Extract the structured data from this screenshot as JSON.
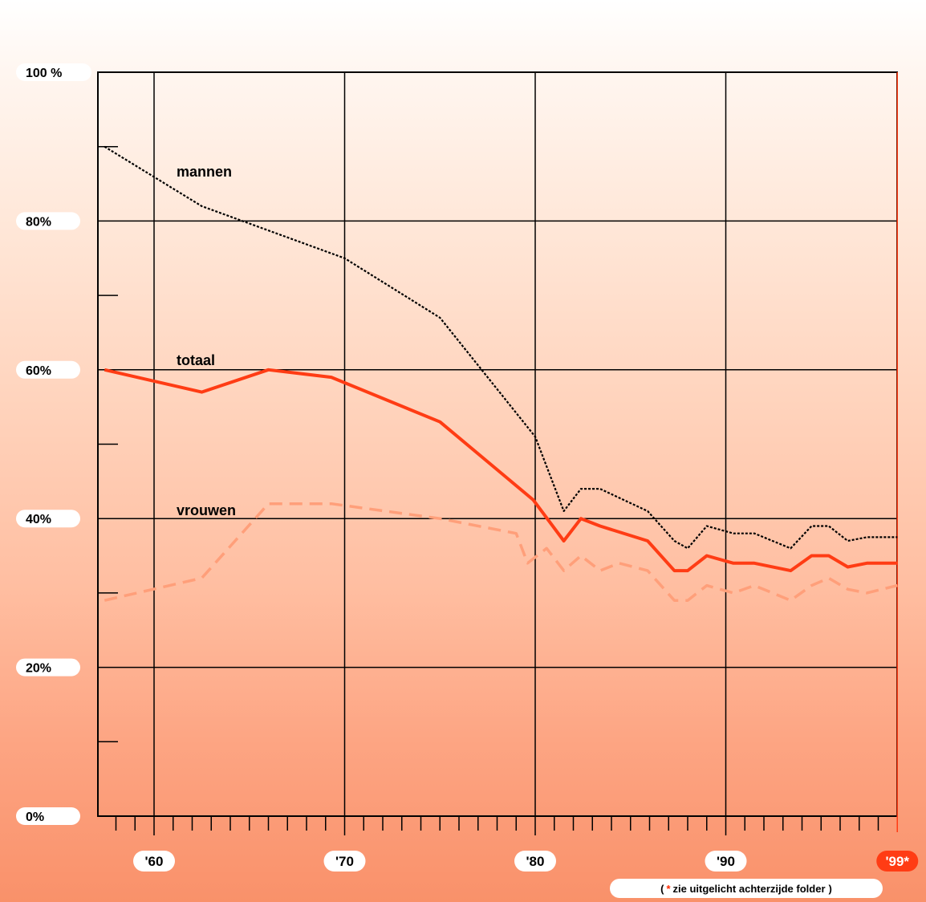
{
  "chart_data": {
    "type": "line",
    "y_tick_labels": [
      "0%",
      "20%",
      "40%",
      "60%",
      "80%",
      "100 %"
    ],
    "y_tick_values": [
      0,
      20,
      40,
      60,
      80,
      100
    ],
    "x_tick_labels": [
      "'60",
      "'70",
      "'80",
      "'90",
      "'99*"
    ],
    "x_tick_values": [
      1960,
      1970,
      1980,
      1990,
      1999
    ],
    "highlight_year": 1999,
    "xlim": [
      1957,
      2000
    ],
    "ylim": [
      0,
      100
    ],
    "grid": true,
    "series": [
      {
        "name": "mannen",
        "color": "#000000",
        "style": "dotted",
        "points": [
          [
            1957.4,
            90
          ],
          [
            1962.5,
            82
          ],
          [
            1970,
            75
          ],
          [
            1975,
            67
          ],
          [
            1980,
            51
          ],
          [
            1981.5,
            41
          ],
          [
            1982.4,
            44
          ],
          [
            1983.4,
            44
          ],
          [
            1985.9,
            41
          ],
          [
            1987.3,
            37
          ],
          [
            1988,
            36
          ],
          [
            1989,
            39
          ],
          [
            1990.4,
            38
          ],
          [
            1991.5,
            38
          ],
          [
            1993.4,
            36
          ],
          [
            1994.5,
            39
          ],
          [
            1995.4,
            39
          ],
          [
            1996.4,
            37
          ],
          [
            1997.4,
            37.5
          ],
          [
            1999,
            37.5
          ]
        ]
      },
      {
        "name": "totaal",
        "color": "#ff3c14",
        "style": "solid",
        "points": [
          [
            1957.4,
            60
          ],
          [
            1962.5,
            57
          ],
          [
            1966,
            60
          ],
          [
            1969.3,
            59
          ],
          [
            1975,
            53
          ],
          [
            1979.9,
            42.5
          ],
          [
            1981.5,
            37
          ],
          [
            1982.4,
            40
          ],
          [
            1983.4,
            39
          ],
          [
            1985.9,
            37
          ],
          [
            1987.3,
            33
          ],
          [
            1988,
            33
          ],
          [
            1989,
            35
          ],
          [
            1990.4,
            34
          ],
          [
            1991.5,
            34
          ],
          [
            1993.4,
            33
          ],
          [
            1994.5,
            35
          ],
          [
            1995.4,
            35
          ],
          [
            1996.4,
            33.5
          ],
          [
            1997.4,
            34
          ],
          [
            1999,
            34
          ]
        ]
      },
      {
        "name": "vrouwen",
        "color": "#ff9f7a",
        "style": "dashed",
        "points": [
          [
            1957.4,
            29
          ],
          [
            1962.5,
            32
          ],
          [
            1966,
            42
          ],
          [
            1969.3,
            42
          ],
          [
            1975,
            40
          ],
          [
            1979,
            38
          ],
          [
            1979.6,
            34
          ],
          [
            1980.6,
            36
          ],
          [
            1981.5,
            33
          ],
          [
            1982.4,
            35
          ],
          [
            1983.4,
            33
          ],
          [
            1984.4,
            34
          ],
          [
            1985.9,
            33
          ],
          [
            1987.3,
            29
          ],
          [
            1988,
            29
          ],
          [
            1989,
            31
          ],
          [
            1990.4,
            30
          ],
          [
            1991.5,
            31
          ],
          [
            1993.4,
            29
          ],
          [
            1994.5,
            31
          ],
          [
            1995.4,
            32
          ],
          [
            1996.4,
            30.5
          ],
          [
            1997.4,
            30
          ],
          [
            1999,
            31
          ]
        ]
      }
    ],
    "footnote": {
      "open": "(",
      "star": "*",
      "text": "zie uitgelicht achterzijde folder",
      "close": ")"
    }
  }
}
